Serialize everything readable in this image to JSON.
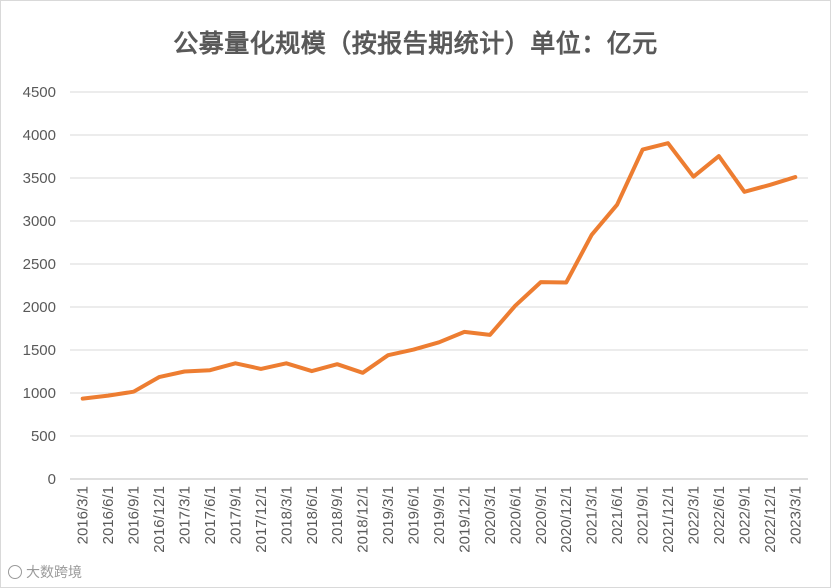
{
  "chart_data": {
    "type": "line",
    "title": "公募量化规模（按报告期统计）单位：亿元",
    "xlabel": "",
    "ylabel": "",
    "ylim": [
      0,
      4500
    ],
    "yticks": [
      0,
      500,
      1000,
      1500,
      2000,
      2500,
      3000,
      3500,
      4000,
      4500
    ],
    "grid": true,
    "legend": "none",
    "line_color": "#ed7d31",
    "categories": [
      "2016/3/1",
      "2016/6/1",
      "2016/9/1",
      "2016/12/1",
      "2017/3/1",
      "2017/6/1",
      "2017/9/1",
      "2017/12/1",
      "2018/3/1",
      "2018/6/1",
      "2018/9/1",
      "2018/12/1",
      "2019/3/1",
      "2019/6/1",
      "2019/9/1",
      "2019/12/1",
      "2020/3/1",
      "2020/6/1",
      "2020/9/1",
      "2020/12/1",
      "2021/3/1",
      "2021/6/1",
      "2021/9/1",
      "2021/12/1",
      "2022/3/1",
      "2022/6/1",
      "2022/9/1",
      "2022/12/1",
      "2023/3/1"
    ],
    "values": [
      935,
      970,
      1015,
      1185,
      1250,
      1265,
      1345,
      1280,
      1345,
      1255,
      1335,
      1235,
      1440,
      1505,
      1590,
      1710,
      1675,
      2015,
      2290,
      2285,
      2840,
      3190,
      3830,
      3905,
      3515,
      3755,
      3340,
      3420,
      3510
    ]
  },
  "watermark": "大数跨境"
}
